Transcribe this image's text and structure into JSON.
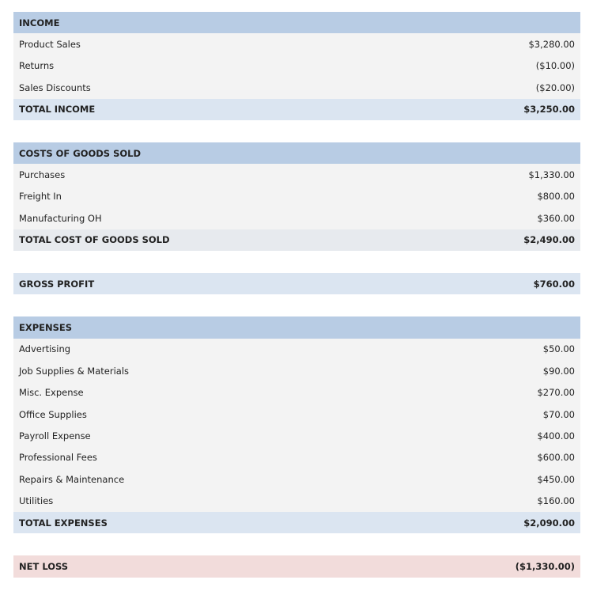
{
  "sections": [
    {
      "header": "INCOME",
      "rows": [
        {
          "label": "Product Sales",
          "amount": "$3,280.00"
        },
        {
          "label": "Returns",
          "amount": "($10.00)"
        },
        {
          "label": "Sales Discounts",
          "amount": "($20.00)"
        }
      ],
      "total": {
        "label": "TOTAL INCOME",
        "amount": "$3,250.00"
      }
    },
    {
      "header": "COSTS OF GOODS SOLD",
      "rows": [
        {
          "label": "Purchases",
          "amount": "$1,330.00"
        },
        {
          "label": "Freight In",
          "amount": "$800.00"
        },
        {
          "label": "Manufacturing OH",
          "amount": "$360.00"
        }
      ],
      "total": {
        "label": "TOTAL COST OF GOODS SOLD",
        "amount": "$2,490.00"
      }
    },
    {
      "total": {
        "label": "GROSS PROFIT",
        "amount": "$760.00"
      }
    },
    {
      "header": "EXPENSES",
      "rows": [
        {
          "label": "Advertising",
          "amount": "$50.00"
        },
        {
          "label": "Job Supplies & Materials",
          "amount": "$90.00"
        },
        {
          "label": "Misc. Expense",
          "amount": "$270.00"
        },
        {
          "label": "Office Supplies",
          "amount": "$70.00"
        },
        {
          "label": "Payroll Expense",
          "amount": "$400.00"
        },
        {
          "label": "Professional Fees",
          "amount": "$600.00"
        },
        {
          "label": "Repairs & Maintenance",
          "amount": "$450.00"
        },
        {
          "label": "Utilities",
          "amount": "$160.00"
        }
      ],
      "total": {
        "label": "TOTAL EXPENSES",
        "amount": "$2,090.00"
      }
    },
    {
      "total": {
        "label": "NET LOSS",
        "amount": "($1,330.00)"
      }
    }
  ]
}
